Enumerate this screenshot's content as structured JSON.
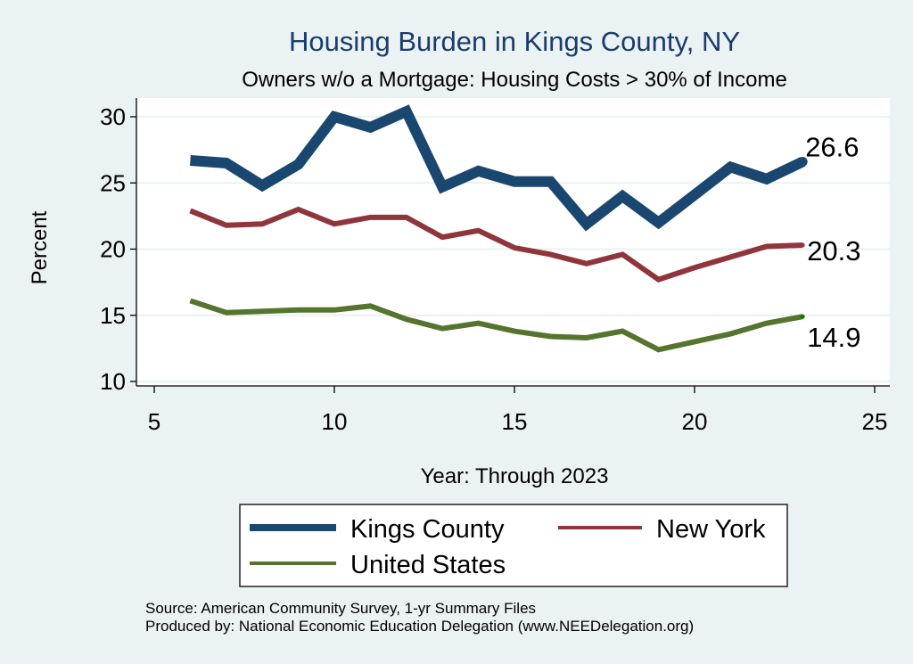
{
  "chart_data": {
    "type": "line",
    "title": "Housing Burden in Kings County, NY",
    "subtitle": "Owners w/o a Mortgage: Housing Costs > 30% of Income",
    "xlabel": "Year: Through 2023",
    "ylabel": "Percent",
    "xlim": [
      5,
      25
    ],
    "ylim": [
      10,
      30
    ],
    "xticks": [
      5,
      10,
      15,
      20,
      25
    ],
    "yticks": [
      10,
      15,
      20,
      25,
      30
    ],
    "grid": true,
    "x": [
      6,
      7,
      8,
      9,
      10,
      11,
      12,
      13,
      14,
      15,
      16,
      17,
      18,
      19,
      20,
      21,
      22,
      23
    ],
    "series": [
      {
        "name": "Kings County",
        "color": "#1a476f",
        "values": [
          26.7,
          26.5,
          24.8,
          26.4,
          30.0,
          29.2,
          30.4,
          24.7,
          25.9,
          25.1,
          25.1,
          21.9,
          24.0,
          22.0,
          24.1,
          26.2,
          25.3,
          26.6
        ],
        "end_label": "26.6"
      },
      {
        "name": "New York",
        "color": "#90353b",
        "values": [
          22.9,
          21.8,
          21.9,
          23.0,
          21.9,
          22.4,
          22.4,
          20.9,
          21.4,
          20.1,
          19.6,
          18.9,
          19.6,
          17.7,
          18.6,
          19.4,
          20.2,
          20.3
        ],
        "end_label": "20.3"
      },
      {
        "name": "United States",
        "color": "#55752f",
        "values": [
          16.1,
          15.2,
          15.3,
          15.4,
          15.4,
          15.7,
          14.7,
          14.0,
          14.4,
          13.8,
          13.4,
          13.3,
          13.8,
          12.4,
          13.0,
          13.6,
          14.4,
          14.9
        ],
        "end_label": "14.9",
        "end_marker_color": "#008000"
      }
    ],
    "legend": {
      "placement": "bottom",
      "entries": [
        "Kings County",
        "New York",
        "United States"
      ]
    },
    "notes": [
      "Source: American Community Survey, 1-yr Summary Files",
      "Produced by: National Economic Education Delegation (www.NEEDelegation.org)"
    ]
  },
  "colors": {
    "background": "#eaf2f3",
    "plot_background": "#ffffff",
    "grid": "#eaf2f3",
    "title": "#1a3c6e"
  }
}
